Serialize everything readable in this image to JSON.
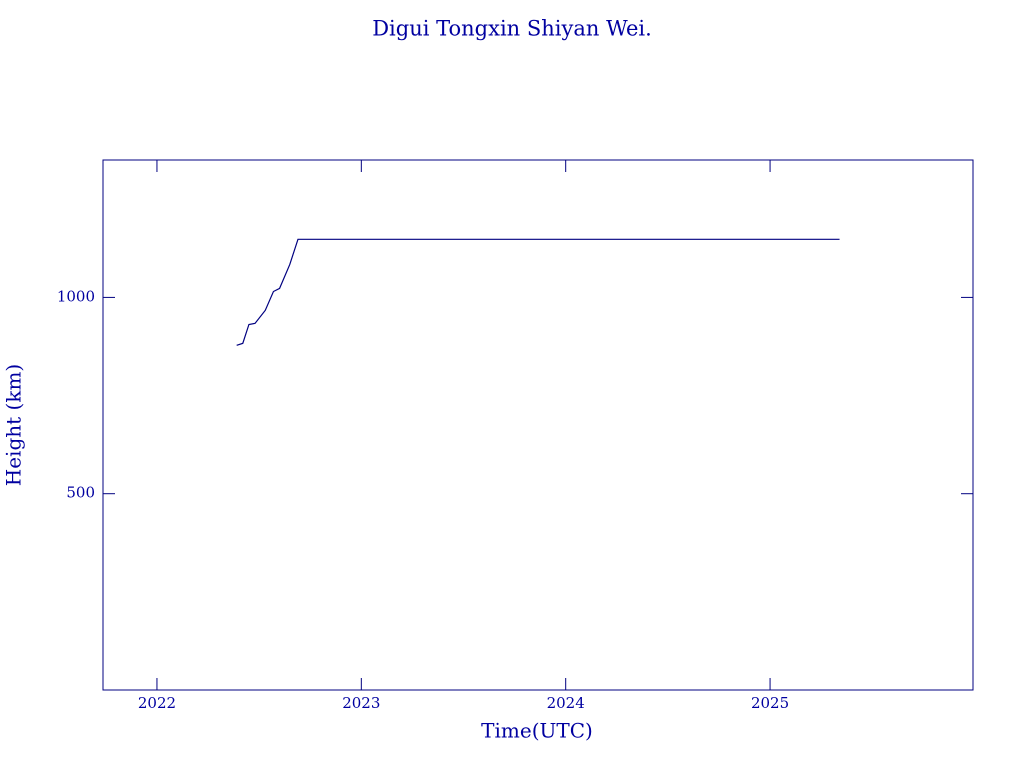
{
  "chart_data": {
    "type": "line",
    "title": "Digui Tongxin Shiyan Wei.",
    "x_label": "Time(UTC)",
    "y_label": "Height (km)",
    "x": [
      2022.39,
      2022.42,
      2022.45,
      2022.48,
      2022.53,
      2022.57,
      2022.6,
      2022.65,
      2022.69,
      2025.34
    ],
    "series": [
      {
        "name": "Height",
        "color": "#000080",
        "values": [
          878,
          883,
          931,
          934,
          967,
          1015,
          1023,
          1084,
          1148,
          1148
        ]
      }
    ],
    "xlim": [
      2021.736,
      2025.993
    ],
    "xticks": [
      2022,
      2023,
      2024,
      2025
    ],
    "ylim": [
      0,
      1350
    ],
    "yticks": [
      500,
      1000
    ],
    "axis_color": "#000080"
  }
}
